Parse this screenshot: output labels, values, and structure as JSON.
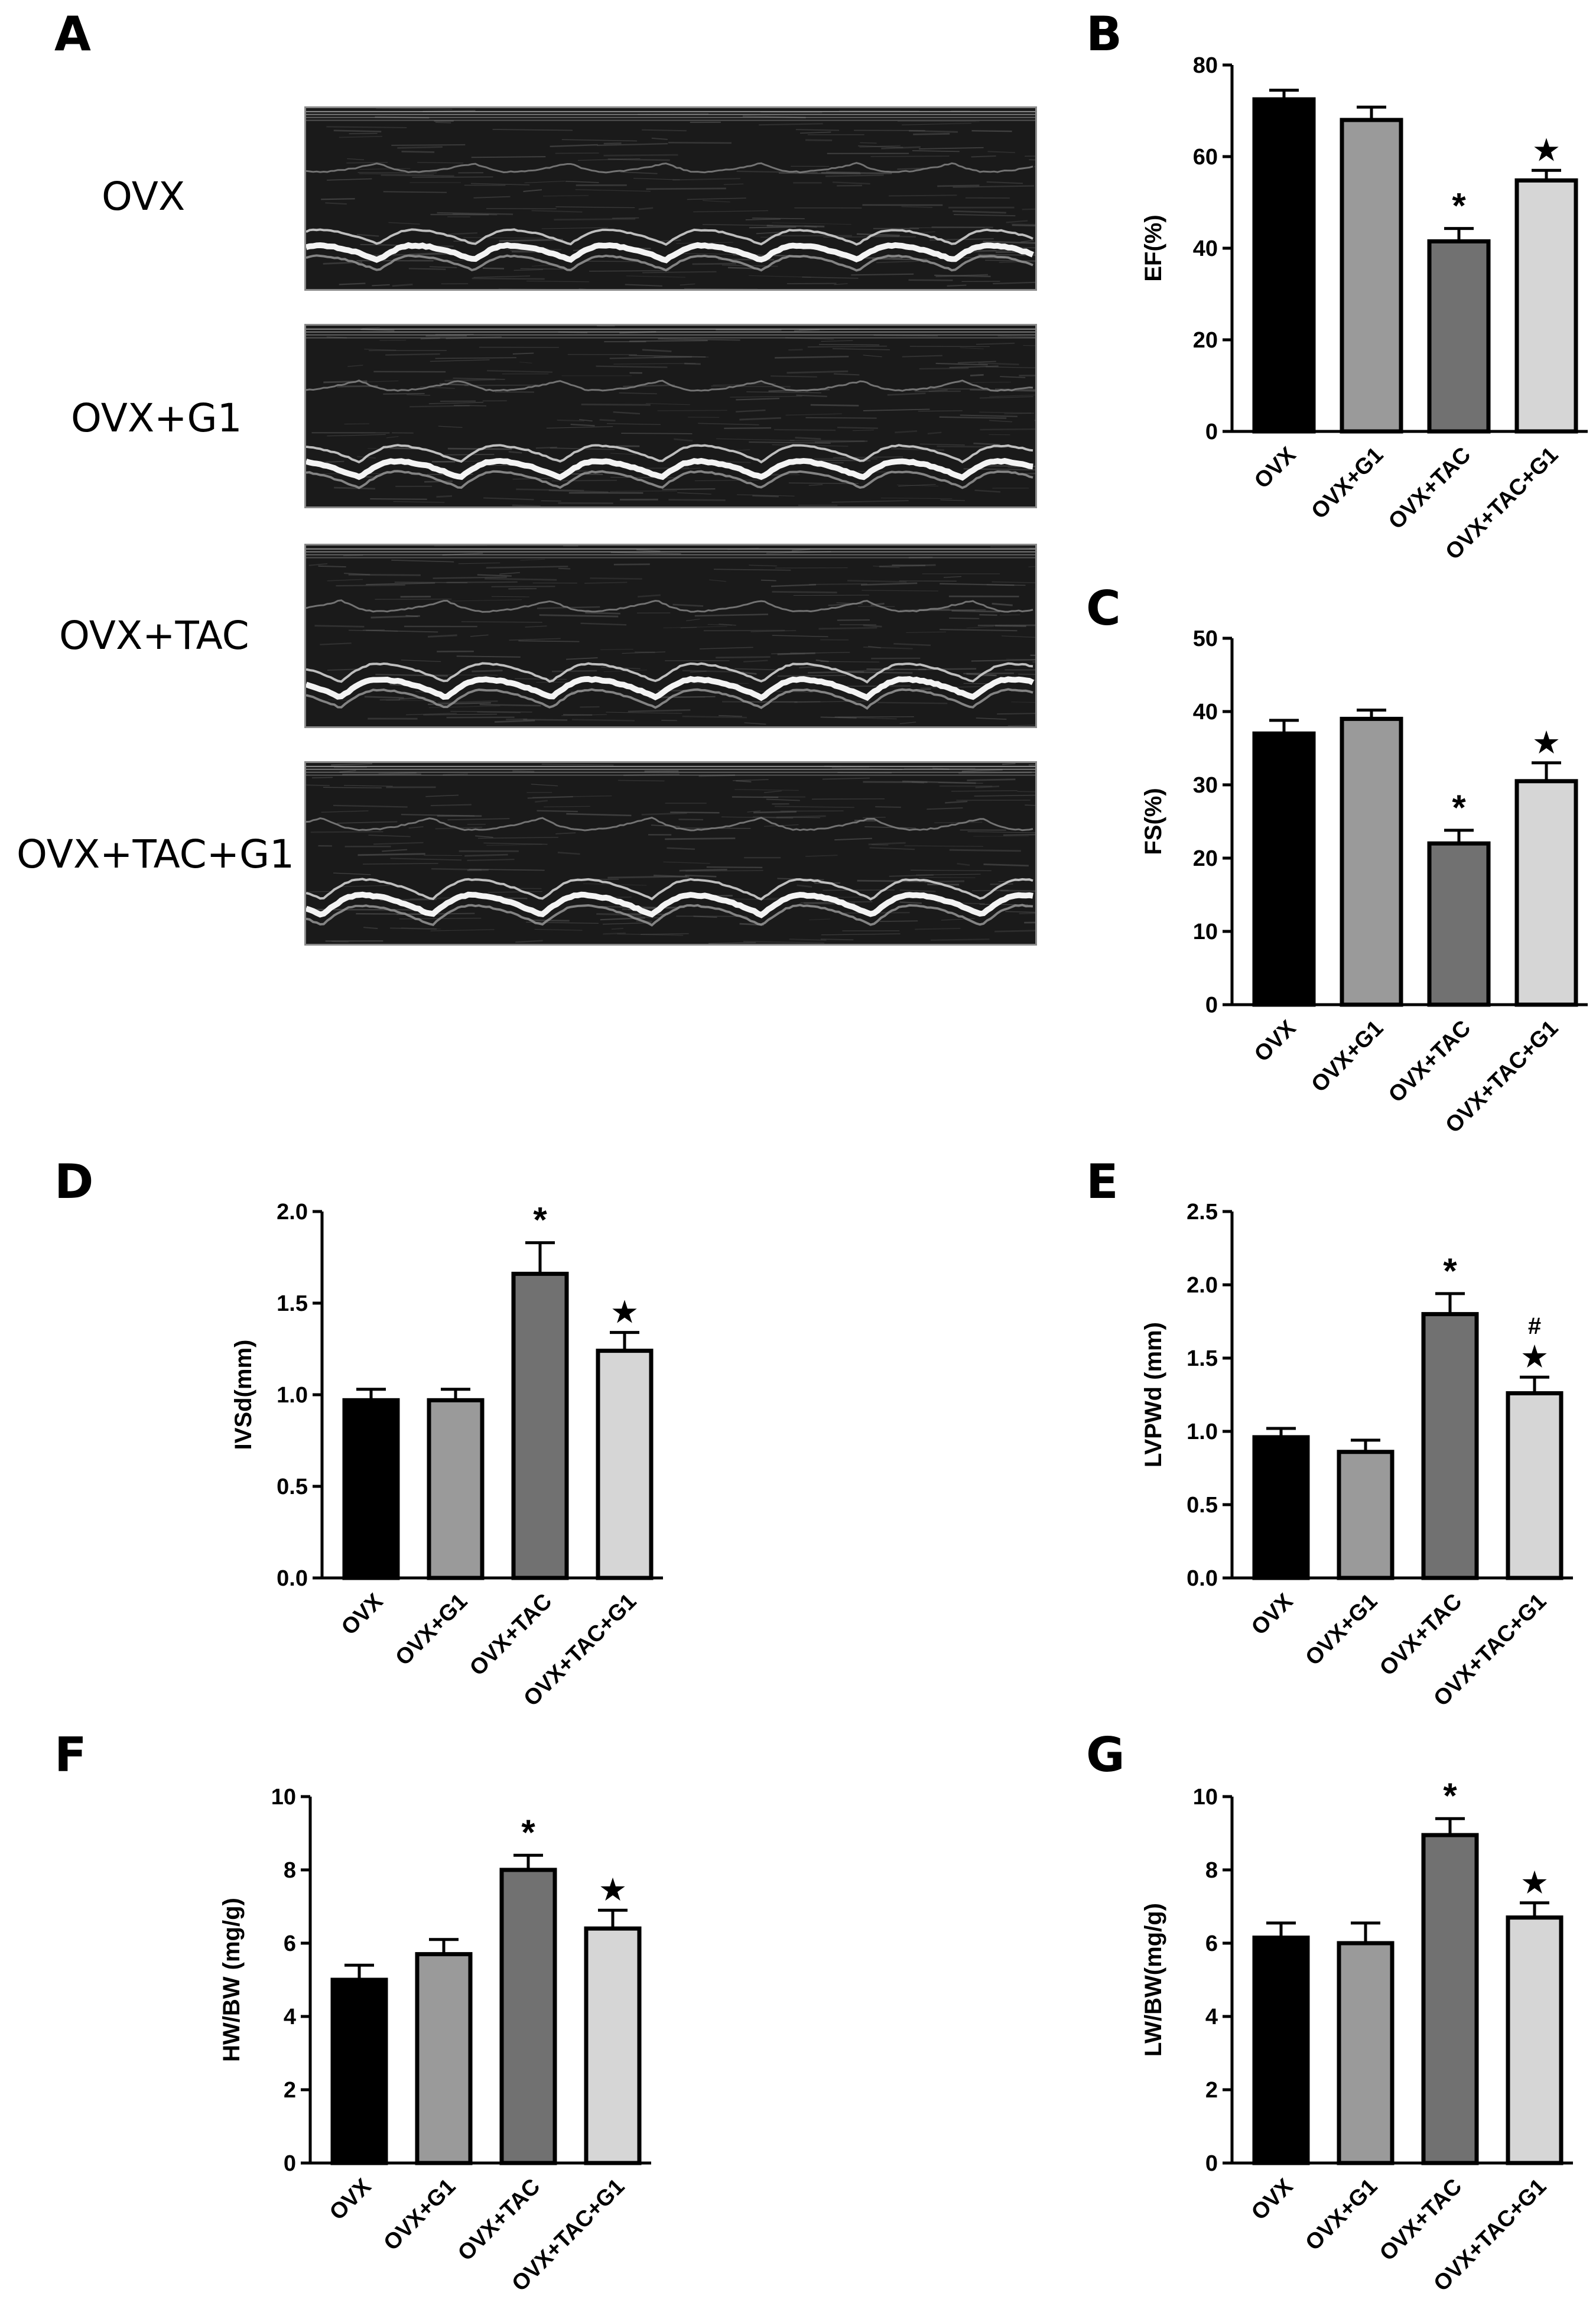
{
  "panel_a": {
    "letter": "A",
    "rows": [
      {
        "label": "OVX"
      },
      {
        "label": "OVX+G1"
      },
      {
        "label": "OVX+TAC"
      },
      {
        "label": "OVX+TAC+G1"
      }
    ]
  },
  "colors": {
    "OVX": "#000000",
    "OVX+G1": "#9a9a9a",
    "OVX+TAC": "#717171",
    "OVX+TAC+G1": "#d6d6d6",
    "axis": "#000000",
    "echo_bg": "#1a1a1a"
  },
  "chart_data": [
    {
      "panel": "B",
      "type": "bar",
      "categories": [
        "OVX",
        "OVX+G1",
        "OVX+TAC",
        "OVX+TAC+G1"
      ],
      "values": [
        72.5,
        68.0,
        41.5,
        54.8
      ],
      "errors": [
        2.0,
        2.8,
        2.8,
        2.2
      ],
      "markers": [
        "",
        "",
        "*",
        "★"
      ],
      "ylabel": "EF(%)",
      "ylim": [
        0,
        80
      ],
      "yticks": [
        0,
        20,
        40,
        60,
        80
      ],
      "ytick_labels": [
        "0",
        "20",
        "40",
        "60",
        "80"
      ]
    },
    {
      "panel": "C",
      "type": "bar",
      "categories": [
        "OVX",
        "OVX+G1",
        "OVX+TAC",
        "OVX+TAC+G1"
      ],
      "values": [
        37.0,
        39.0,
        22.0,
        30.5
      ],
      "errors": [
        1.8,
        1.2,
        1.8,
        2.5
      ],
      "markers": [
        "",
        "",
        "*",
        "★"
      ],
      "ylabel": "FS(%)",
      "ylim": [
        0,
        50
      ],
      "yticks": [
        0,
        10,
        20,
        30,
        40,
        50
      ],
      "ytick_labels": [
        "0",
        "10",
        "20",
        "30",
        "40",
        "50"
      ]
    },
    {
      "panel": "D",
      "type": "bar",
      "categories": [
        "OVX",
        "OVX+G1",
        "OVX+TAC",
        "OVX+TAC+G1"
      ],
      "values": [
        0.97,
        0.97,
        1.66,
        1.24
      ],
      "errors": [
        0.06,
        0.06,
        0.17,
        0.1
      ],
      "markers": [
        "",
        "",
        "*",
        "★"
      ],
      "ylabel": "IVSd(mm)",
      "ylim": [
        0,
        2.0
      ],
      "yticks": [
        0,
        0.5,
        1.0,
        1.5,
        2.0
      ],
      "ytick_labels": [
        "0.0",
        "0.5",
        "1.0",
        "1.5",
        "2.0"
      ]
    },
    {
      "panel": "E",
      "type": "bar",
      "categories": [
        "OVX",
        "OVX+G1",
        "OVX+TAC",
        "OVX+TAC+G1"
      ],
      "values": [
        0.96,
        0.86,
        1.8,
        1.26
      ],
      "errors": [
        0.06,
        0.08,
        0.14,
        0.11
      ],
      "markers": [
        "",
        "",
        "*",
        "★"
      ],
      "extra_markers": [
        "",
        "",
        "",
        "#"
      ],
      "ylabel": "LVPWd (mm)",
      "ylim": [
        0,
        2.5
      ],
      "yticks": [
        0,
        0.5,
        1.0,
        1.5,
        2.0,
        2.5
      ],
      "ytick_labels": [
        "0.0",
        "0.5",
        "1.0",
        "1.5",
        "2.0",
        "2.5"
      ]
    },
    {
      "panel": "F",
      "type": "bar",
      "categories": [
        "OVX",
        "OVX+G1",
        "OVX+TAC",
        "OVX+TAC+G1"
      ],
      "values": [
        5.0,
        5.7,
        8.0,
        6.4
      ],
      "errors": [
        0.4,
        0.4,
        0.4,
        0.5
      ],
      "markers": [
        "",
        "",
        "*",
        "★"
      ],
      "ylabel": "HW/BW (mg/g)",
      "ylim": [
        0,
        10
      ],
      "yticks": [
        0,
        2,
        4,
        6,
        8,
        10
      ],
      "ytick_labels": [
        "0",
        "2",
        "4",
        "6",
        "8",
        "10"
      ]
    },
    {
      "panel": "G",
      "type": "bar",
      "categories": [
        "OVX",
        "OVX+G1",
        "OVX+TAC",
        "OVX+TAC+G1"
      ],
      "values": [
        6.15,
        6.0,
        8.95,
        6.7
      ],
      "errors": [
        0.4,
        0.55,
        0.45,
        0.4
      ],
      "markers": [
        "",
        "",
        "*",
        "★"
      ],
      "ylabel": "LW/BW(mg/g)",
      "ylim": [
        0,
        10
      ],
      "yticks": [
        0,
        2,
        4,
        6,
        8,
        10
      ],
      "ytick_labels": [
        "0",
        "2",
        "4",
        "6",
        "8",
        "10"
      ]
    }
  ]
}
